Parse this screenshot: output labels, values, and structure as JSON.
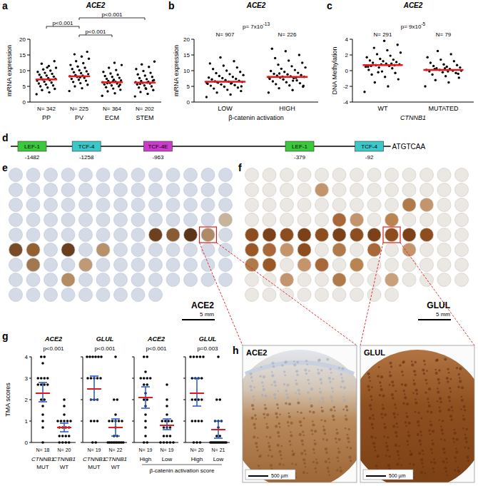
{
  "chart_data": [
    {
      "panel": "a",
      "type": "strip",
      "title": "ACE2",
      "ylabel": "mRNA expression",
      "color": "#000000",
      "categories": [
        "PP",
        "PV",
        "ECM",
        "STEM"
      ],
      "n_labels": [
        "N= 342",
        "N= 225",
        "N= 364",
        "N= 202"
      ],
      "ylim": [
        0,
        20
      ],
      "yticks": [
        0,
        5,
        10,
        15,
        20
      ],
      "points": [
        [
          2.5,
          3.1,
          3.8,
          4.2,
          4.6,
          5.0,
          5.3,
          5.6,
          5.9,
          6.2,
          6.5,
          6.8,
          7.0,
          7.2,
          7.4,
          7.6,
          7.9,
          8.1,
          8.4,
          8.7,
          9.0,
          9.3,
          9.6,
          10.0,
          10.4,
          10.9,
          11.5,
          12.2,
          13.0,
          11.0
        ],
        [
          3.5,
          4.4,
          5.0,
          5.5,
          6.0,
          6.4,
          6.8,
          7.1,
          7.4,
          7.7,
          8.0,
          8.2,
          8.4,
          8.6,
          8.9,
          9.2,
          9.5,
          9.8,
          10.1,
          10.5,
          10.9,
          11.3,
          11.8,
          12.4,
          13.0,
          13.8,
          14.5,
          15.2,
          16.0,
          7.9
        ],
        [
          2.0,
          2.8,
          3.4,
          3.9,
          4.3,
          4.7,
          5.0,
          5.3,
          5.6,
          5.9,
          6.1,
          6.3,
          6.5,
          6.7,
          6.9,
          7.1,
          7.4,
          7.7,
          8.0,
          8.3,
          8.7,
          9.1,
          9.6,
          10.2,
          10.9,
          11.8,
          12.5,
          6.0,
          5.5,
          6.6
        ],
        [
          1.8,
          2.6,
          3.2,
          3.8,
          4.2,
          4.6,
          5.0,
          5.3,
          5.6,
          5.9,
          6.1,
          6.3,
          6.5,
          6.7,
          7.0,
          7.3,
          7.6,
          8.0,
          8.4,
          8.8,
          9.3,
          9.9,
          10.5,
          11.2,
          12.0,
          12.9,
          6.2,
          5.8,
          6.8,
          4.4
        ]
      ],
      "means": [
        7.2,
        8.2,
        6.3,
        6.2
      ],
      "brackets": [
        {
          "text": "p<0.001",
          "between": [
            1,
            2
          ]
        },
        {
          "text": "p<0.001",
          "between": [
            0,
            1
          ]
        },
        {
          "text": "p<0.001",
          "between": [
            1,
            3
          ]
        }
      ]
    },
    {
      "panel": "b",
      "type": "strip",
      "title": "ACE2",
      "ylabel": "mRNA expression",
      "xlabel": "β-catenin activation",
      "color": "#000000",
      "categories": [
        "LOW",
        "HIGH"
      ],
      "n_labels": [
        "N= 907",
        "N= 226"
      ],
      "annotation": "p= 7x10",
      "annotation_sup": "-13",
      "ylim": [
        0,
        20
      ],
      "yticks": [
        0,
        5,
        10,
        15,
        20
      ],
      "points": [
        [
          1.6,
          2.4,
          3.0,
          3.5,
          3.9,
          4.3,
          4.6,
          4.9,
          5.2,
          5.4,
          5.6,
          5.8,
          6.0,
          6.2,
          6.4,
          6.5,
          6.6,
          6.8,
          7.0,
          7.2,
          7.4,
          7.6,
          7.8,
          8.0,
          8.3,
          8.6,
          8.9,
          9.2,
          9.6,
          10.0,
          10.5,
          11.0,
          11.6,
          12.3,
          13.0,
          14.2,
          6.1,
          5.9,
          6.3,
          5.0
        ],
        [
          3.0,
          3.8,
          4.4,
          4.9,
          5.3,
          5.7,
          6.0,
          6.3,
          6.6,
          6.9,
          7.2,
          7.4,
          7.6,
          7.8,
          8.0,
          8.2,
          8.4,
          8.6,
          8.8,
          9.0,
          9.3,
          9.6,
          9.9,
          10.2,
          10.6,
          11.0,
          11.4,
          11.9,
          12.5,
          13.2,
          14.0,
          15.0,
          16.2,
          17.0,
          7.7,
          8.1,
          7.9,
          6.8,
          9.1,
          5.2
        ]
      ],
      "means": [
        6.5,
        8.0
      ]
    },
    {
      "panel": "c",
      "type": "strip",
      "title": "ACE2",
      "ylabel": "DNA Methylation",
      "xlabel": "CTNNB1",
      "color": "#000000",
      "categories": [
        "WT",
        "MUTATED"
      ],
      "n_labels": [
        "N= 291",
        "N= 79"
      ],
      "annotation": "p= 9x10",
      "annotation_sup": "-5",
      "ylim": [
        -4,
        4
      ],
      "yticks": [
        -4,
        -2,
        0,
        2,
        4
      ],
      "points": [
        [
          -2.7,
          -2.0,
          -1.5,
          -1.1,
          -0.8,
          -0.5,
          -0.3,
          -0.1,
          0.1,
          0.3,
          0.4,
          0.5,
          0.6,
          0.7,
          0.8,
          0.9,
          1.0,
          1.1,
          1.2,
          1.3,
          1.4,
          1.5,
          1.7,
          1.9,
          2.1,
          2.3,
          2.6,
          2.9,
          3.3,
          3.8,
          0.6,
          0.7,
          0.8,
          0.5,
          0.9,
          -0.2
        ],
        [
          -2.0,
          -1.5,
          -1.2,
          -0.9,
          -0.7,
          -0.5,
          -0.3,
          -0.2,
          -0.1,
          0.0,
          0.1,
          0.1,
          0.2,
          0.3,
          0.4,
          0.5,
          0.6,
          0.7,
          0.8,
          1.0,
          1.2,
          1.4,
          1.7,
          2.1,
          2.5,
          0.0,
          -0.1,
          0.2,
          -0.4,
          0.3
        ]
      ],
      "means": [
        0.7,
        0.1
      ]
    },
    {
      "panel": "g",
      "type": "strip",
      "ylabel": "TMA scores",
      "color": "#000000",
      "ylim": [
        0,
        4
      ],
      "yticks": [
        0,
        1,
        2,
        3,
        4
      ],
      "group_label": "β-catenin activation score",
      "group_label_subplots": [
        2,
        3
      ],
      "subplots": [
        {
          "title": "ACE2",
          "annotation": "p<0.001",
          "category_prefix": "CTNNB1",
          "categories": [
            "MUT",
            "WT"
          ],
          "n_labels": [
            "N= 18",
            "N= 20"
          ],
          "points": [
            [
              4,
              4,
              3.7,
              3,
              3,
              3,
              3,
              2.7,
              2.7,
              2.7,
              2.7,
              2,
              2,
              1.7,
              1.3,
              1,
              0.7,
              0
            ],
            [
              2,
              1.7,
              1.3,
              1,
              1,
              1,
              1,
              1,
              0.7,
              0.7,
              0.7,
              0.7,
              0.3,
              0.3,
              0.3,
              0.3,
              0,
              0,
              0,
              0
            ]
          ],
          "means": [
            2.3,
            0.7
          ],
          "ci": [
            [
              1.9,
              2.8
            ],
            [
              0.5,
              0.9
            ]
          ]
        },
        {
          "title": "GLUL",
          "annotation": "p<0.001",
          "category_prefix": "CTNNB1",
          "categories": [
            "MUT",
            "WT"
          ],
          "n_labels": [
            "N= 19",
            "N= 22"
          ],
          "points": [
            [
              4,
              4,
              4,
              4,
              4,
              4,
              3,
              3,
              3,
              3,
              3,
              2,
              2,
              2,
              1,
              1,
              1,
              0,
              0
            ],
            [
              4,
              2,
              2,
              1.3,
              1,
              1,
              1,
              1,
              1,
              0.7,
              0.3,
              0.3,
              0,
              0,
              0,
              0,
              0,
              0,
              0,
              0,
              0,
              0
            ]
          ],
          "means": [
            2.5,
            0.7
          ],
          "ci": [
            [
              2.0,
              3.1
            ],
            [
              0.3,
              1.1
            ]
          ]
        },
        {
          "title": "ACE2",
          "annotation": "p<0.001",
          "categories": [
            "High",
            "Low"
          ],
          "n_labels": [
            "N= 19",
            "N= 19"
          ],
          "points": [
            [
              4,
              4,
              3.3,
              3,
              3,
              3,
              3,
              2.7,
              2.7,
              2.3,
              2,
              2,
              1.7,
              1.3,
              1,
              0.7,
              0.3,
              0,
              0
            ],
            [
              2.7,
              2,
              1.7,
              1.3,
              1,
              1,
              1,
              1,
              0.7,
              0.7,
              0.7,
              0.3,
              0.3,
              0.3,
              0,
              0,
              0,
              0,
              0
            ]
          ],
          "means": [
            2.1,
            0.8
          ],
          "ci": [
            [
              1.6,
              2.6
            ],
            [
              0.6,
              1.1
            ]
          ]
        },
        {
          "title": "GLUL",
          "annotation": "p=0.003",
          "categories": [
            "High",
            "Low"
          ],
          "n_labels": [
            "N= 20",
            "N= 21"
          ],
          "points": [
            [
              4,
              4,
              4,
              4,
              4,
              3,
              3,
              3,
              3,
              2,
              2,
              2,
              2,
              1,
              1,
              1,
              1,
              0,
              0,
              0
            ],
            [
              4,
              2,
              2,
              1,
              1,
              1,
              0.7,
              0.3,
              0.3,
              0,
              0,
              0,
              0,
              0,
              0,
              0,
              0,
              0,
              0,
              0,
              0
            ]
          ],
          "means": [
            2.3,
            0.6
          ],
          "ci": [
            [
              1.7,
              3.0
            ],
            [
              0.2,
              1.0
            ]
          ]
        }
      ]
    }
  ],
  "diagram": {
    "panel": "d",
    "sequence": "ATGTCAA",
    "elements": [
      {
        "label": "LEF-1",
        "position": -1482,
        "color": "#3cc83c"
      },
      {
        "label": "TCF-4",
        "position": -1258,
        "color": "#3cc8c8"
      },
      {
        "label": "TCF-4E",
        "position": -963,
        "color": "#cc3ccc"
      },
      {
        "label": "LEF-1",
        "position": -379,
        "color": "#3cc83c"
      },
      {
        "label": "TCF-4",
        "position": -92,
        "color": "#3cc8c8"
      }
    ]
  },
  "images": [
    {
      "panel": "e",
      "label": "ACE2",
      "scale_bar": "5 mm"
    },
    {
      "panel": "f",
      "label": "GLUL",
      "scale_bar": "5 mm"
    },
    {
      "panel": "h",
      "items": [
        {
          "label": "ACE2",
          "scale_bar": "500 µm"
        },
        {
          "label": "GLUL",
          "scale_bar": "500 µm"
        }
      ]
    }
  ]
}
